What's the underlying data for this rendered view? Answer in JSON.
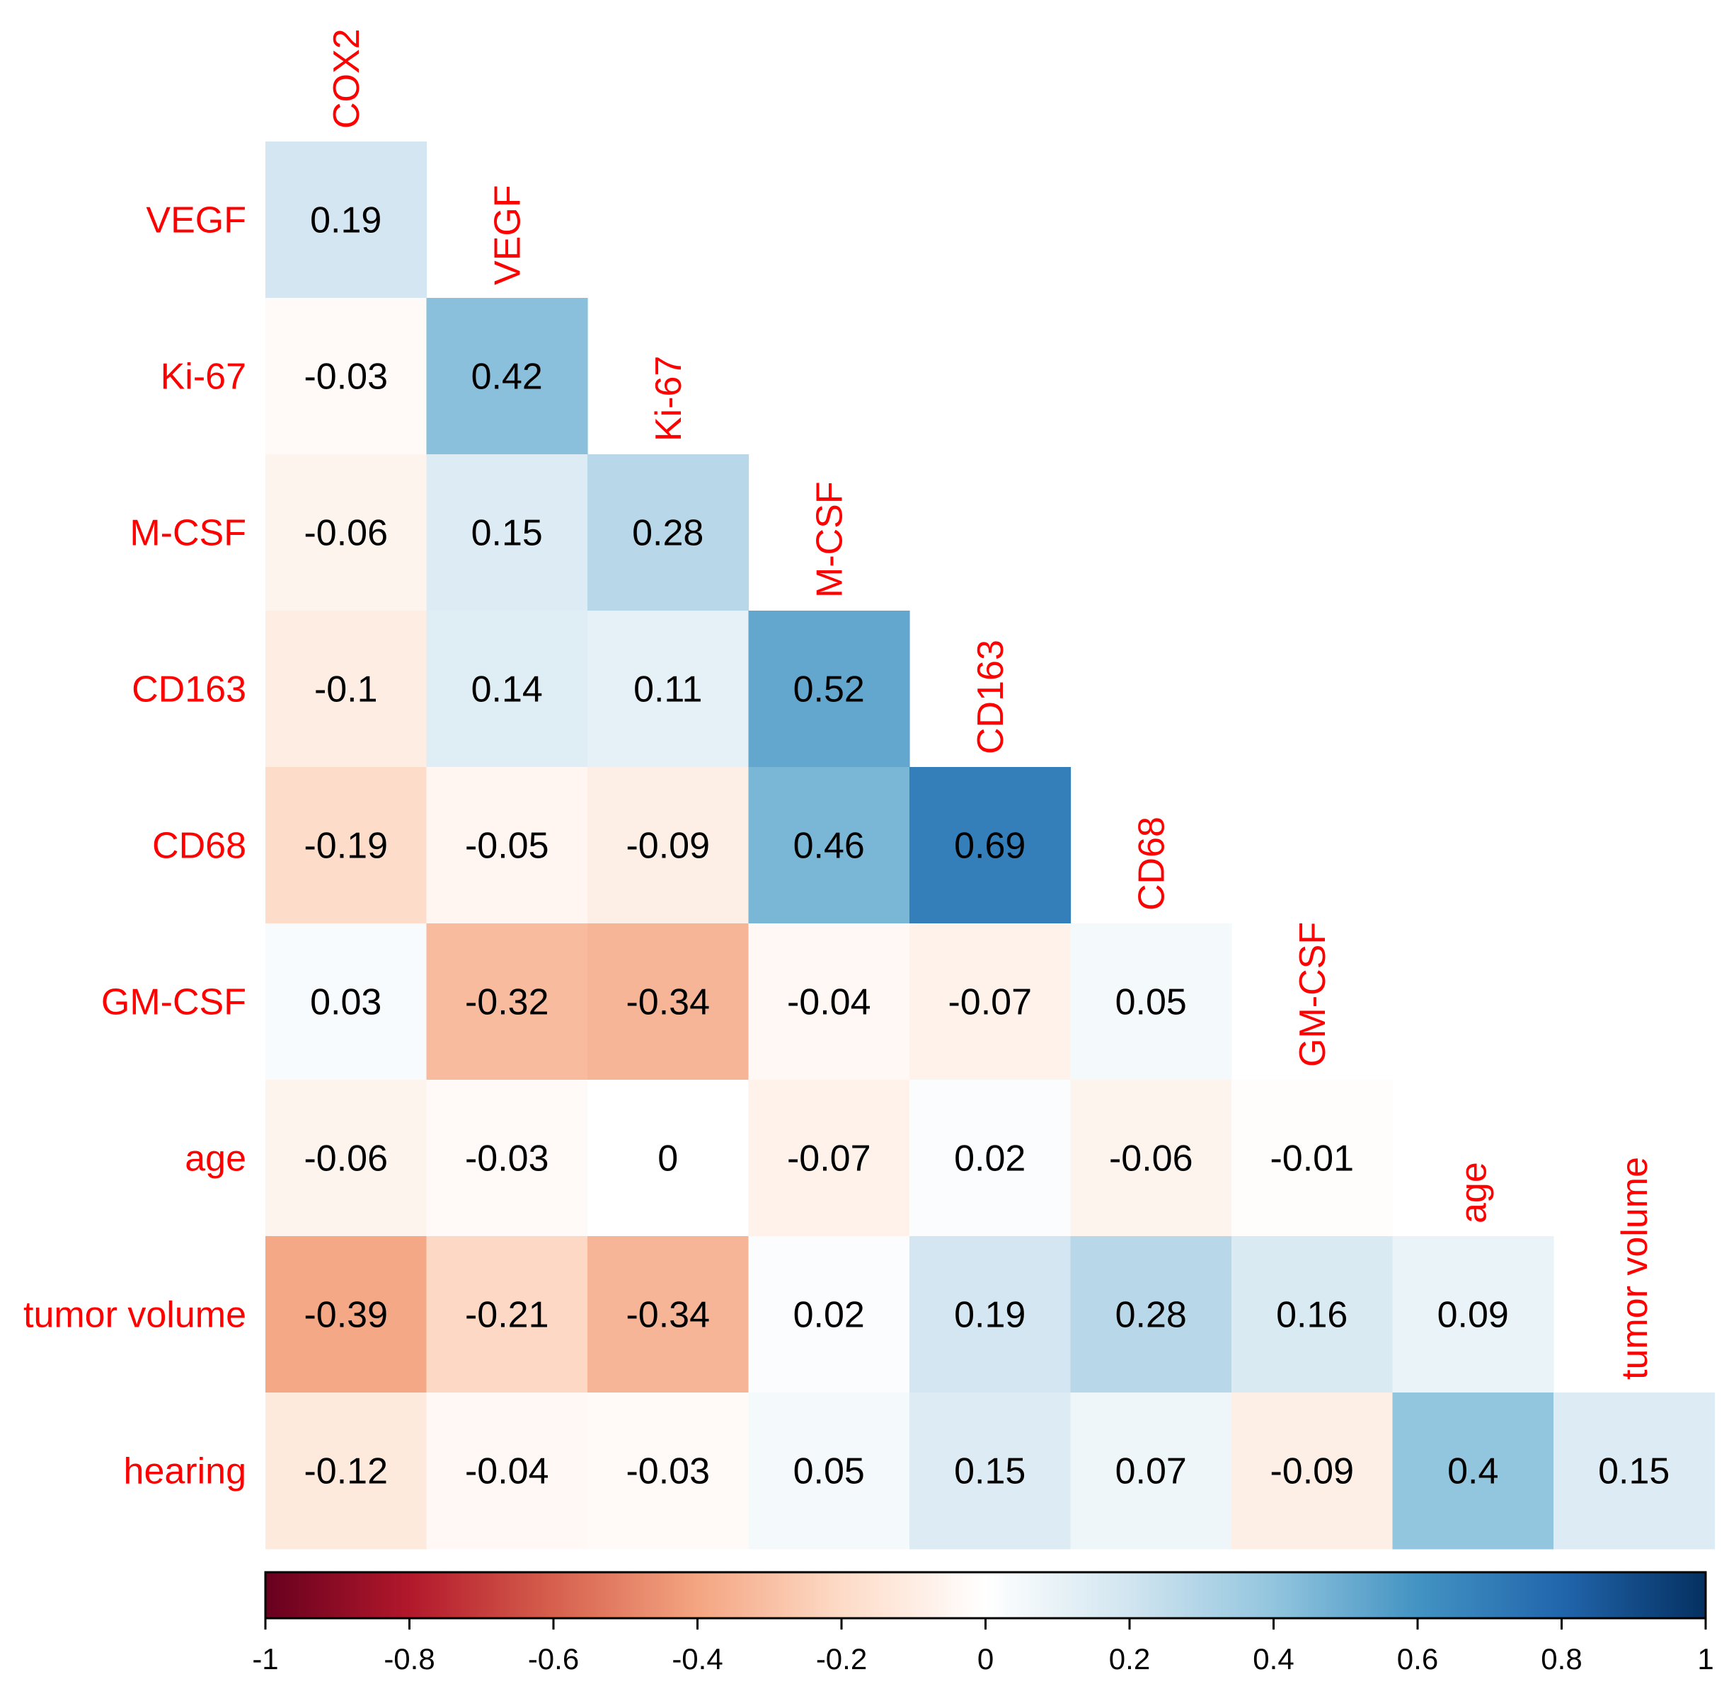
{
  "chart_data": {
    "type": "heatmap",
    "variables": [
      "COX2",
      "VEGF",
      "Ki-67",
      "M-CSF",
      "CD163",
      "CD68",
      "GM-CSF",
      "age",
      "tumor volume",
      "hearing"
    ],
    "row_labels": [
      "VEGF",
      "Ki-67",
      "M-CSF",
      "CD163",
      "CD68",
      "GM-CSF",
      "age",
      "tumor volume",
      "hearing"
    ],
    "column_labels": [
      "COX2",
      "VEGF",
      "Ki-67",
      "M-CSF",
      "CD163",
      "CD68",
      "GM-CSF",
      "age",
      "tumor volume"
    ],
    "matrix": [
      [
        0.19
      ],
      [
        -0.03,
        0.42
      ],
      [
        -0.06,
        0.15,
        0.28
      ],
      [
        -0.1,
        0.14,
        0.11,
        0.52
      ],
      [
        -0.19,
        -0.05,
        -0.09,
        0.46,
        0.69
      ],
      [
        0.03,
        -0.32,
        -0.34,
        -0.04,
        -0.07,
        0.05
      ],
      [
        -0.06,
        -0.03,
        0,
        -0.07,
        0.02,
        -0.06,
        -0.01
      ],
      [
        -0.39,
        -0.21,
        -0.34,
        0.02,
        0.19,
        0.28,
        0.16,
        0.09
      ],
      [
        -0.12,
        -0.04,
        -0.03,
        0.05,
        0.15,
        0.07,
        -0.09,
        0.4,
        0.15
      ]
    ],
    "colorbar": {
      "range": [
        -1,
        1
      ],
      "tick_labels": [
        "-1",
        "-0.8",
        "-0.6",
        "-0.4",
        "-0.2",
        "0",
        "0.2",
        "0.4",
        "0.6",
        "0.8",
        "1"
      ],
      "colors": [
        "#67001f",
        "#b2182b",
        "#d6604d",
        "#f4a582",
        "#fddbc7",
        "#ffffff",
        "#d1e5f0",
        "#92c5de",
        "#4393c3",
        "#2166ac",
        "#053061"
      ]
    },
    "grid": false,
    "legend": "bottom"
  }
}
